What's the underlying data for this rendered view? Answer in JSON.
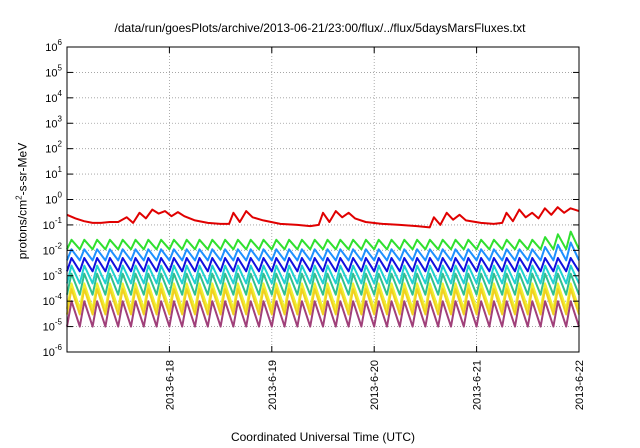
{
  "chart_data": {
    "type": "line",
    "title": "/data/run/goesPlots/archive/2013-06-21/23:00/flux/../flux/5daysMarsFluxes.txt",
    "xlabel": "Coordinated Universal Time (UTC)",
    "ylabel": {
      "base": "protons/cm",
      "sup": "2",
      "rest": "-s-sr-MeV"
    },
    "xlim": [
      "2013-06-17T00:00",
      "2013-06-22T00:00"
    ],
    "ylim": [
      1e-06,
      1000000.0
    ],
    "yscale": "log",
    "grid": true,
    "legend": "none",
    "x_ticks": [
      "2013-6-18",
      "2013-6-19",
      "2013-6-20",
      "2013-6-21",
      "2013-6-22"
    ],
    "y_ticks": [
      {
        "base": "10",
        "exp": "-6"
      },
      {
        "base": "10",
        "exp": "-5"
      },
      {
        "base": "10",
        "exp": "-4"
      },
      {
        "base": "10",
        "exp": "-3"
      },
      {
        "base": "10",
        "exp": "-2"
      },
      {
        "base": "10",
        "exp": "-1"
      },
      {
        "base": "10",
        "exp": "0"
      },
      {
        "base": "10",
        "exp": "1"
      },
      {
        "base": "10",
        "exp": "2"
      },
      {
        "base": "10",
        "exp": "3"
      },
      {
        "base": "10",
        "exp": "4"
      },
      {
        "base": "10",
        "exp": "5"
      },
      {
        "base": "10",
        "exp": "6"
      }
    ],
    "series": [
      {
        "color": "#e00000",
        "points": [
          [
            "2013-06-17T00:00",
            0.25
          ],
          [
            "2013-06-17T02:00",
            0.18
          ],
          [
            "2013-06-17T04:00",
            0.14
          ],
          [
            "2013-06-17T06:00",
            0.12
          ],
          [
            "2013-06-17T08:00",
            0.12
          ],
          [
            "2013-06-17T10:00",
            0.13
          ],
          [
            "2013-06-17T12:00",
            0.13
          ],
          [
            "2013-06-17T14:00",
            0.2
          ],
          [
            "2013-06-17T15:30",
            0.12
          ],
          [
            "2013-06-17T17:00",
            0.3
          ],
          [
            "2013-06-17T18:30",
            0.18
          ],
          [
            "2013-06-17T20:00",
            0.4
          ],
          [
            "2013-06-17T21:30",
            0.28
          ],
          [
            "2013-06-17T23:00",
            0.35
          ],
          [
            "2013-06-18T00:30",
            0.22
          ],
          [
            "2013-06-18T02:00",
            0.32
          ],
          [
            "2013-06-18T03:30",
            0.22
          ],
          [
            "2013-06-18T06:00",
            0.15
          ],
          [
            "2013-06-18T09:00",
            0.12
          ],
          [
            "2013-06-18T12:00",
            0.11
          ],
          [
            "2013-06-18T14:00",
            0.11
          ],
          [
            "2013-06-18T15:00",
            0.3
          ],
          [
            "2013-06-18T16:30",
            0.13
          ],
          [
            "2013-06-18T18:00",
            0.35
          ],
          [
            "2013-06-18T19:30",
            0.2
          ],
          [
            "2013-06-18T22:00",
            0.15
          ],
          [
            "2013-06-19T02:00",
            0.11
          ],
          [
            "2013-06-19T06:00",
            0.1
          ],
          [
            "2013-06-19T09:00",
            0.09
          ],
          [
            "2013-06-19T11:00",
            0.1
          ],
          [
            "2013-06-19T12:00",
            0.3
          ],
          [
            "2013-06-19T13:30",
            0.13
          ],
          [
            "2013-06-19T15:00",
            0.35
          ],
          [
            "2013-06-19T16:30",
            0.2
          ],
          [
            "2013-06-19T18:00",
            0.3
          ],
          [
            "2013-06-19T19:30",
            0.18
          ],
          [
            "2013-06-19T22:00",
            0.13
          ],
          [
            "2013-06-20T02:00",
            0.11
          ],
          [
            "2013-06-20T06:00",
            0.1
          ],
          [
            "2013-06-20T10:00",
            0.09
          ],
          [
            "2013-06-20T13:00",
            0.08
          ],
          [
            "2013-06-20T14:00",
            0.2
          ],
          [
            "2013-06-20T15:30",
            0.1
          ],
          [
            "2013-06-20T17:00",
            0.3
          ],
          [
            "2013-06-20T18:30",
            0.16
          ],
          [
            "2013-06-20T20:00",
            0.25
          ],
          [
            "2013-06-20T21:30",
            0.15
          ],
          [
            "2013-06-21T01:00",
            0.12
          ],
          [
            "2013-06-21T04:00",
            0.11
          ],
          [
            "2013-06-21T06:00",
            0.12
          ],
          [
            "2013-06-21T07:00",
            0.3
          ],
          [
            "2013-06-21T08:30",
            0.14
          ],
          [
            "2013-06-21T10:00",
            0.4
          ],
          [
            "2013-06-21T11:30",
            0.2
          ],
          [
            "2013-06-21T13:00",
            0.3
          ],
          [
            "2013-06-21T14:30",
            0.18
          ],
          [
            "2013-06-21T16:00",
            0.45
          ],
          [
            "2013-06-21T17:30",
            0.25
          ],
          [
            "2013-06-21T19:00",
            0.5
          ],
          [
            "2013-06-21T20:30",
            0.3
          ],
          [
            "2013-06-21T22:00",
            0.45
          ],
          [
            "2013-06-22T00:00",
            0.35
          ]
        ]
      },
      {
        "color": "#30e030",
        "type": "sawtooth",
        "base": 0.011,
        "peak": 0.026,
        "end_peak": 0.07
      },
      {
        "color": "#1e90ff",
        "type": "sawtooth",
        "base": 0.004,
        "peak": 0.011,
        "end_peak": 0.025
      },
      {
        "color": "#1010e0",
        "type": "sawtooth",
        "base": 0.0015,
        "peak": 0.005,
        "end_peak": 0.005
      },
      {
        "color": "#20d0d0",
        "type": "sawtooth",
        "base": 0.0005,
        "peak": 0.0025,
        "end_peak": 0.0025
      },
      {
        "color": "#30c090",
        "type": "sawtooth",
        "base": 0.00018,
        "peak": 0.0012,
        "end_peak": 0.0012
      },
      {
        "color": "#f0f030",
        "type": "sawtooth",
        "base": 5e-05,
        "peak": 0.0005,
        "end_peak": 0.0005
      },
      {
        "color": "#f0d020",
        "type": "sawtooth",
        "base": 3e-05,
        "peak": 0.0003,
        "end_peak": 0.0003
      },
      {
        "color": "#a0407a",
        "type": "sawtooth",
        "base": 1e-05,
        "peak": 0.0001,
        "end_peak": 0.0001
      }
    ]
  }
}
